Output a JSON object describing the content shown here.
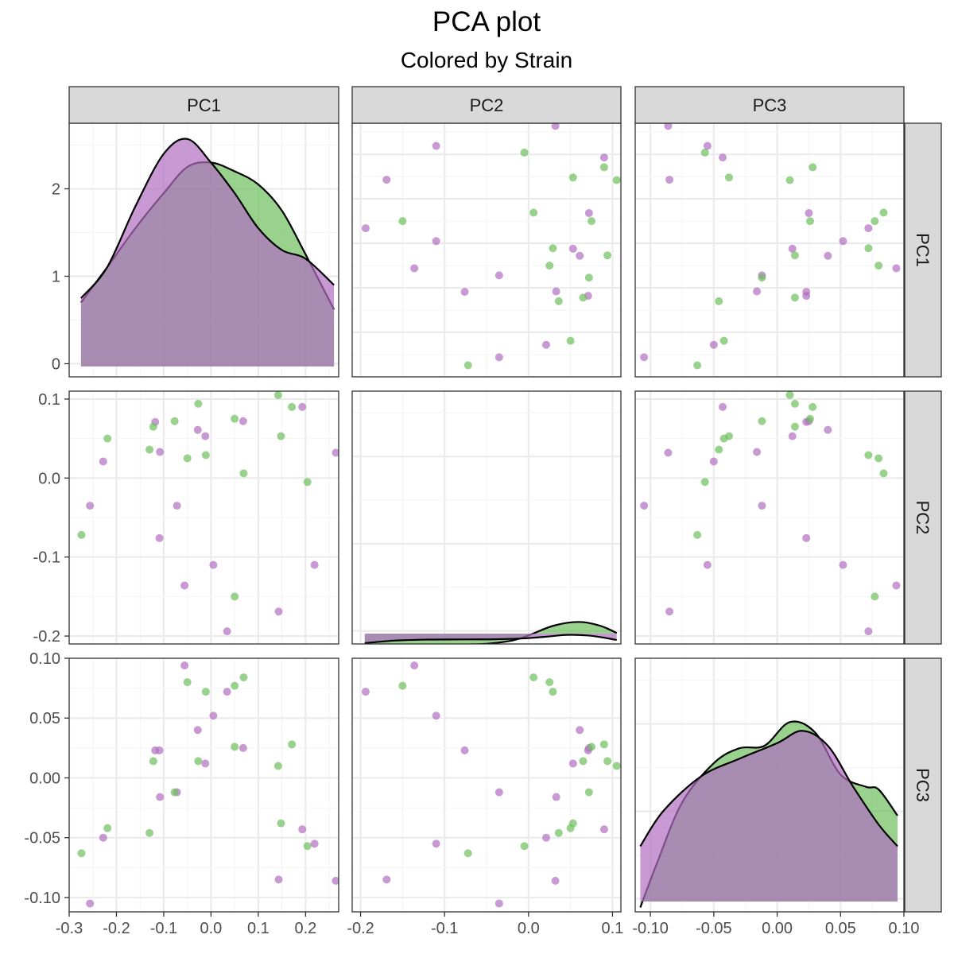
{
  "title": "PCA plot",
  "subtitle": "Colored by Strain",
  "colors": {
    "strain_a": "#b06ec0",
    "strain_b": "#6cbf5c",
    "overlap_fill": "#977d9b",
    "strip_fill": "#d9d9d9",
    "grid_major": "#ebebeb",
    "grid_minor": "#f4f4f4"
  },
  "chart_data": {
    "type": "scatter",
    "variables": [
      "PC1",
      "PC2",
      "PC3"
    ],
    "ranges": {
      "PC1": [
        -0.3,
        0.27
      ],
      "PC2": [
        -0.21,
        0.11
      ],
      "PC3": [
        -0.112,
        0.1
      ]
    },
    "ticks": {
      "PC1": [
        -0.3,
        -0.2,
        -0.1,
        0.0,
        0.1,
        0.2
      ],
      "PC2": [
        -0.2,
        -0.1,
        0.0,
        0.1
      ],
      "PC3": [
        -0.1,
        -0.05,
        0.0,
        0.05,
        0.1
      ]
    },
    "tick_labels": {
      "PC1": [
        "-0.3",
        "-0.2",
        "-0.1",
        "0.0",
        "0.1",
        "0.2"
      ],
      "PC2": [
        "-0.2",
        "-0.1",
        "0.0",
        "0.1"
      ],
      "PC3_x": [
        "-0.10",
        "-0.05",
        "0.00",
        "0.05",
        "0.10"
      ],
      "PC3_y": [
        "0.10",
        "0.05",
        "0.00",
        "-0.05",
        "-0.10"
      ]
    },
    "density_axis": {
      "range": [
        -0.15,
        2.75
      ],
      "ticks": [
        0,
        1,
        2
      ],
      "tick_labels": [
        "0",
        "1",
        "2"
      ]
    },
    "grid": true,
    "series": [
      {
        "points": [
          [
            0.264,
            0.032,
            -0.086
          ],
          [
            -0.256,
            -0.035,
            -0.105
          ],
          [
            -0.228,
            0.021,
            -0.05
          ],
          [
            -0.118,
            0.071,
            0.023
          ],
          [
            -0.108,
            0.033,
            -0.016
          ],
          [
            -0.109,
            -0.076,
            0.023
          ],
          [
            -0.072,
            -0.035,
            -0.012
          ],
          [
            -0.056,
            -0.136,
            0.094
          ],
          [
            -0.028,
            0.061,
            0.04
          ],
          [
            -0.012,
            0.053,
            0.012
          ],
          [
            0.005,
            -0.11,
            0.052
          ],
          [
            0.034,
            -0.194,
            0.072
          ],
          [
            0.068,
            0.072,
            0.025
          ],
          [
            0.143,
            -0.169,
            -0.085
          ],
          [
            0.193,
            0.09,
            -0.043
          ],
          [
            0.219,
            -0.11,
            -0.055
          ]
        ],
        "density": {
          "PC1": [
            [
              -0.275,
              0.75
            ],
            [
              -0.22,
              1.1
            ],
            [
              -0.16,
              1.8
            ],
            [
              -0.1,
              2.4
            ],
            [
              -0.05,
              2.57
            ],
            [
              0.0,
              2.3
            ],
            [
              0.05,
              1.95
            ],
            [
              0.1,
              1.55
            ],
            [
              0.15,
              1.3
            ],
            [
              0.2,
              1.2
            ],
            [
              0.26,
              0.9
            ]
          ],
          "PC2": [
            [
              -0.195,
              -0.14
            ],
            [
              -0.16,
              -0.112
            ],
            [
              -0.12,
              -0.1
            ],
            [
              -0.08,
              -0.098
            ],
            [
              -0.04,
              -0.096
            ],
            [
              -0.01,
              -0.088
            ],
            [
              0.02,
              -0.068
            ],
            [
              0.045,
              -0.046
            ],
            [
              0.07,
              -0.052
            ],
            [
              0.09,
              -0.078
            ],
            [
              0.105,
              -0.104
            ]
          ],
          "PC3": [
            [
              -0.108,
              0.6
            ],
            [
              -0.09,
              1.0
            ],
            [
              -0.06,
              1.4
            ],
            [
              -0.03,
              1.6
            ],
            [
              0.0,
              1.78
            ],
            [
              0.02,
              1.92
            ],
            [
              0.04,
              1.75
            ],
            [
              0.06,
              1.28
            ],
            [
              0.08,
              0.85
            ],
            [
              0.095,
              0.6
            ]
          ]
        }
      },
      {
        "points": [
          [
            -0.274,
            -0.072,
            -0.063
          ],
          [
            -0.219,
            0.05,
            -0.042
          ],
          [
            -0.13,
            0.036,
            -0.046
          ],
          [
            -0.122,
            0.065,
            0.014
          ],
          [
            -0.077,
            0.072,
            -0.012
          ],
          [
            -0.05,
            0.025,
            0.08
          ],
          [
            -0.027,
            0.094,
            0.014
          ],
          [
            -0.011,
            0.029,
            0.072
          ],
          [
            0.05,
            0.075,
            0.026
          ],
          [
            0.05,
            -0.15,
            0.077
          ],
          [
            0.069,
            0.006,
            0.084
          ],
          [
            0.142,
            0.105,
            0.01
          ],
          [
            0.148,
            0.053,
            -0.038
          ],
          [
            0.171,
            0.09,
            0.028
          ],
          [
            0.204,
            -0.005,
            -0.057
          ]
        ],
        "density": {
          "PC1": [
            [
              -0.275,
              0.7
            ],
            [
              -0.22,
              1.1
            ],
            [
              -0.16,
              1.55
            ],
            [
              -0.1,
              1.95
            ],
            [
              -0.05,
              2.25
            ],
            [
              0.0,
              2.3
            ],
            [
              0.05,
              2.2
            ],
            [
              0.1,
              2.05
            ],
            [
              0.15,
              1.75
            ],
            [
              0.2,
              1.25
            ],
            [
              0.26,
              0.62
            ]
          ],
          "PC2": [
            [
              -0.195,
              -0.188
            ],
            [
              -0.17,
              -0.158
            ],
            [
              -0.145,
              -0.172
            ],
            [
              -0.115,
              -0.158
            ],
            [
              -0.08,
              -0.156
            ],
            [
              -0.05,
              -0.148
            ],
            [
              -0.02,
              -0.112
            ],
            [
              0.0,
              -0.052
            ],
            [
              0.03,
              0.06
            ],
            [
              0.06,
              0.103
            ],
            [
              0.085,
              0.06
            ],
            [
              0.105,
              -0.024
            ]
          ],
          "PC3": [
            [
              -0.108,
              -0.1
            ],
            [
              -0.095,
              0.4
            ],
            [
              -0.075,
              1.1
            ],
            [
              -0.05,
              1.55
            ],
            [
              -0.03,
              1.72
            ],
            [
              -0.01,
              1.75
            ],
            [
              0.01,
              2.02
            ],
            [
              0.03,
              1.9
            ],
            [
              0.05,
              1.42
            ],
            [
              0.07,
              1.28
            ],
            [
              0.08,
              1.25
            ],
            [
              0.095,
              0.95
            ]
          ]
        }
      }
    ]
  }
}
